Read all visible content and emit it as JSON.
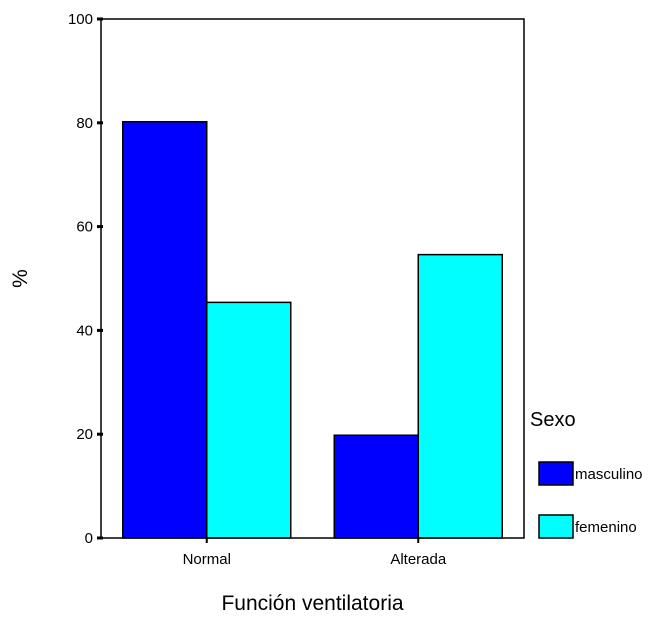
{
  "chart_data": {
    "type": "bar",
    "categories": [
      "Normal",
      "Alterada"
    ],
    "series": [
      {
        "name": "masculino",
        "values": [
          80.2,
          19.8
        ],
        "color": "#0000ff"
      },
      {
        "name": "femenino",
        "values": [
          45.4,
          54.6
        ],
        "color": "#00ffff"
      }
    ],
    "ylim": [
      0,
      100
    ],
    "yticks": [
      0,
      20,
      40,
      60,
      80,
      100
    ],
    "xlabel": "Función ventilatoria",
    "ylabel": "%",
    "legend": {
      "title": "Sexo",
      "position": "right"
    },
    "grid": false
  }
}
